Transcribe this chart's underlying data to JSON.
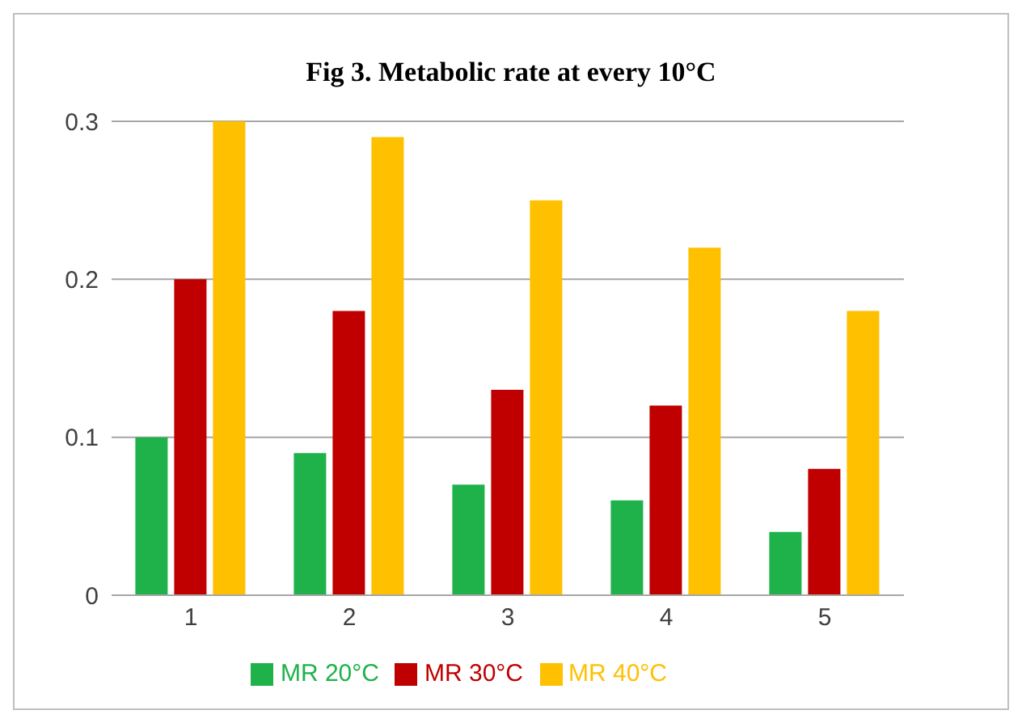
{
  "chart_data": {
    "type": "bar",
    "title": "Fig 3. Metabolic rate at every 10°C",
    "categories": [
      "1",
      "2",
      "3",
      "4",
      "5"
    ],
    "series": [
      {
        "name": "MR 20°C",
        "color": "#1fb24a",
        "values": [
          0.1,
          0.09,
          0.07,
          0.06,
          0.04
        ]
      },
      {
        "name": "MR 30°C",
        "color": "#c00000",
        "values": [
          0.2,
          0.18,
          0.13,
          0.12,
          0.08
        ]
      },
      {
        "name": "MR 40°C",
        "color": "#ffc000",
        "values": [
          0.3,
          0.29,
          0.25,
          0.22,
          0.18
        ]
      }
    ],
    "ylim": [
      0,
      0.3
    ],
    "yticks": [
      0,
      0.1,
      0.2,
      0.3
    ],
    "grid": "y",
    "legend": "bottom"
  }
}
